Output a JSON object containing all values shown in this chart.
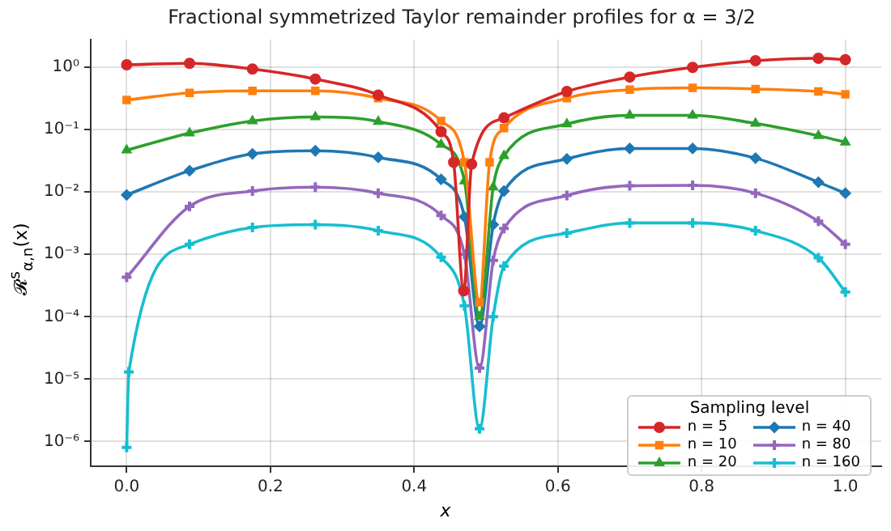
{
  "chart_data": {
    "type": "line",
    "title": "Fractional symmetrized Taylor remainder profiles for α = 3/2",
    "xlabel": "x",
    "ylabel": "𝓡$^{s}$$_{α,n}$(x)",
    "legend_title": "Sampling level",
    "legend": "bottom right",
    "grid": true,
    "log": "y",
    "xlim": [
      -0.05,
      1.05
    ],
    "xticks": [
      {
        "value": 0,
        "label": "0.0"
      },
      0.2,
      0.4,
      0.6,
      0.8,
      {
        "value": 1,
        "label": "1.0"
      }
    ],
    "ylim": [
      4e-07,
      2.8
    ],
    "yticks": [
      {
        "value": 1e-06,
        "label": "10⁻⁶"
      },
      {
        "value": 1e-05,
        "label": "10⁻⁵"
      },
      {
        "value": 0.0001,
        "label": "10⁻⁴"
      },
      {
        "value": 0.001,
        "label": "10⁻³"
      },
      {
        "value": 0.01,
        "label": "10⁻²"
      },
      {
        "value": 0.1,
        "label": "10⁻¹"
      },
      {
        "value": 1,
        "label": "10⁰"
      }
    ],
    "series": [
      {
        "name": "n = 5",
        "color": "#d62728",
        "marker": "circle",
        "x": [
          0,
          0.0875,
          0.175,
          0.2625,
          0.35,
          0.4375,
          0.455,
          0.469,
          0.48,
          0.525,
          0.6125,
          0.7,
          0.7875,
          0.875,
          0.9625,
          1.0
        ],
        "values": [
          1.1,
          1.16,
          0.94,
          0.65,
          0.36,
          0.093,
          0.03,
          0.00026,
          0.028,
          0.155,
          0.41,
          0.7,
          1.0,
          1.28,
          1.4,
          1.33
        ]
      },
      {
        "name": "n = 10",
        "color": "#ff7f0e",
        "marker": "square",
        "x": [
          0,
          0.0875,
          0.175,
          0.2625,
          0.35,
          0.4375,
          0.47,
          0.491,
          0.505,
          0.525,
          0.6125,
          0.7,
          0.7875,
          0.875,
          0.9625,
          1.0
        ],
        "values": [
          0.3,
          0.39,
          0.42,
          0.42,
          0.32,
          0.138,
          0.03,
          0.00017,
          0.03,
          0.106,
          0.32,
          0.44,
          0.47,
          0.45,
          0.41,
          0.37
        ]
      },
      {
        "name": "n = 20",
        "color": "#2ca02c",
        "marker": "triangle",
        "x": [
          0,
          0.0875,
          0.175,
          0.2625,
          0.35,
          0.4375,
          0.47,
          0.491,
          0.51,
          0.525,
          0.6125,
          0.7,
          0.7875,
          0.875,
          0.9625,
          1.0
        ],
        "values": [
          0.047,
          0.088,
          0.138,
          0.16,
          0.135,
          0.058,
          0.015,
          0.0001,
          0.012,
          0.038,
          0.123,
          0.17,
          0.17,
          0.126,
          0.08,
          0.063
        ]
      },
      {
        "name": "n = 40",
        "color": "#1f77b4",
        "marker": "diamond",
        "x": [
          0,
          0.0875,
          0.175,
          0.2625,
          0.35,
          0.4375,
          0.47,
          0.491,
          0.51,
          0.525,
          0.6125,
          0.7,
          0.7875,
          0.875,
          0.9625,
          1.0
        ],
        "values": [
          0.009,
          0.022,
          0.041,
          0.046,
          0.036,
          0.016,
          0.004,
          7e-05,
          0.003,
          0.0104,
          0.034,
          0.05,
          0.05,
          0.035,
          0.0144,
          0.0096
        ]
      },
      {
        "name": "n = 80",
        "color": "#9467bd",
        "marker": "cross",
        "x": [
          0,
          0.0875,
          0.175,
          0.2625,
          0.35,
          0.4375,
          0.47,
          0.491,
          0.51,
          0.525,
          0.6125,
          0.7,
          0.7875,
          0.875,
          0.9625,
          1.0
        ],
        "values": [
          0.00043,
          0.0059,
          0.0104,
          0.012,
          0.0096,
          0.0042,
          0.001,
          1.5e-05,
          0.0008,
          0.0026,
          0.0088,
          0.0126,
          0.0128,
          0.0096,
          0.0034,
          0.00145
        ]
      },
      {
        "name": "n = 160",
        "color": "#17becf",
        "marker": "cross",
        "x": [
          0,
          0.003,
          0.0875,
          0.175,
          0.2625,
          0.35,
          0.4375,
          0.47,
          0.491,
          0.51,
          0.525,
          0.6125,
          0.7,
          0.7875,
          0.875,
          0.9625,
          1.0
        ],
        "values": [
          8e-07,
          1.3e-05,
          0.00145,
          0.0027,
          0.003,
          0.0024,
          0.0009,
          0.00015,
          1.6e-06,
          0.0001,
          0.00065,
          0.0022,
          0.0032,
          0.0032,
          0.0024,
          0.00088,
          0.00025
        ]
      }
    ]
  }
}
